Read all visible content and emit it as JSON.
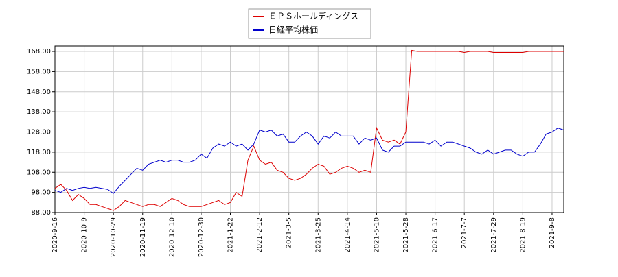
{
  "chart_data": {
    "type": "line",
    "categories": [
      "2020-9-16",
      null,
      null,
      null,
      null,
      "2020-10-9",
      null,
      null,
      null,
      null,
      "2020-10-29",
      null,
      null,
      null,
      null,
      "2020-11-19",
      null,
      null,
      null,
      null,
      "2020-12-10",
      null,
      null,
      null,
      null,
      "2020-12-30",
      null,
      null,
      null,
      null,
      "2021-1-22",
      null,
      null,
      null,
      null,
      "2021-2-12",
      null,
      null,
      null,
      null,
      "2021-3-5",
      null,
      null,
      null,
      null,
      "2021-3-25",
      null,
      null,
      null,
      null,
      "2021-4-14",
      null,
      null,
      null,
      null,
      "2021-5-10",
      null,
      null,
      null,
      null,
      "2021-5-28",
      null,
      null,
      null,
      null,
      "2021-6-17",
      null,
      null,
      null,
      null,
      "2021-7-7",
      null,
      null,
      null,
      null,
      "2021-7-29",
      null,
      null,
      null,
      null,
      "2021-8-19",
      null,
      null,
      null,
      null,
      "2021-9-8",
      null,
      null
    ],
    "series": [
      {
        "name": "ＥＰＳホールディングス",
        "color": "#dd0000",
        "values": [
          100,
          102,
          99,
          94,
          97,
          95,
          92,
          92,
          91,
          90,
          89,
          91,
          94,
          93,
          92,
          91,
          92,
          92,
          91,
          93,
          95,
          94,
          92,
          91,
          91,
          91,
          92,
          93,
          94,
          92,
          93,
          98,
          96,
          114,
          121,
          114,
          112,
          113,
          109,
          108,
          105,
          104,
          105,
          107,
          110,
          112,
          111,
          107,
          108,
          110,
          111,
          110,
          108,
          109,
          108,
          130,
          124,
          123,
          124,
          122,
          128,
          168.5,
          168,
          168,
          168,
          168,
          168,
          168,
          168,
          168,
          167.5,
          168,
          168,
          168,
          168,
          167.5,
          167.5,
          167.5,
          167.5,
          167.5,
          167.5,
          168,
          168,
          168,
          168,
          168,
          168,
          168
        ]
      },
      {
        "name": "日経平均株価",
        "color": "#0000cc",
        "values": [
          99,
          98,
          100,
          99,
          100,
          100.5,
          100,
          100.5,
          100,
          99.5,
          97.5,
          101,
          104,
          107,
          110,
          109,
          112,
          113,
          114,
          113,
          114,
          114,
          113,
          113,
          114,
          117,
          115,
          120,
          122,
          121,
          123,
          121,
          122,
          119,
          122,
          129,
          128,
          129,
          126,
          127,
          123,
          123,
          126,
          128,
          126,
          122,
          126,
          125,
          128,
          126,
          126,
          126,
          122,
          125,
          124,
          125,
          119,
          118,
          121,
          121,
          123,
          123,
          123,
          123,
          122,
          124,
          121,
          123,
          123,
          122,
          121,
          120,
          118,
          117,
          119,
          117,
          118,
          119,
          119,
          117,
          116,
          118,
          118,
          122,
          127,
          128,
          130,
          129
        ]
      }
    ],
    "ylim": [
      88,
      168
    ],
    "yticks": [
      {
        "value": 88,
        "label": "88.00"
      },
      {
        "value": 98,
        "label": "98.00"
      },
      {
        "value": 108,
        "label": "108.00"
      },
      {
        "value": 118,
        "label": "118.00"
      },
      {
        "value": 128,
        "label": "128.00"
      },
      {
        "value": 138,
        "label": "138.00"
      },
      {
        "value": 148,
        "label": "148.00"
      },
      {
        "value": 158,
        "label": "158.00"
      },
      {
        "value": 168,
        "label": "168.00"
      }
    ],
    "grid": true,
    "legend": "top"
  }
}
